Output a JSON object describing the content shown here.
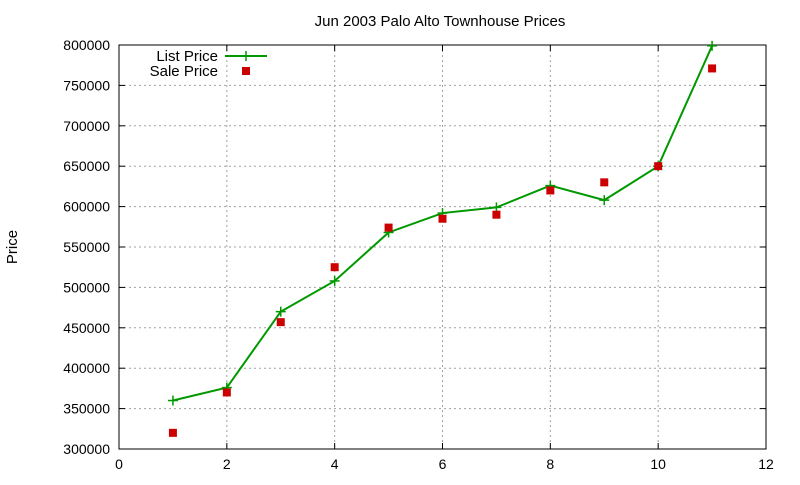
{
  "chart_data": {
    "type": "line",
    "title": "Jun 2003 Palo Alto Townhouse Prices",
    "xlabel": "",
    "ylabel": "Price",
    "xlim": [
      0,
      12
    ],
    "ylim": [
      300000,
      800000
    ],
    "x_ticks": [
      0,
      2,
      4,
      6,
      8,
      10,
      12
    ],
    "y_ticks": [
      300000,
      350000,
      400000,
      450000,
      500000,
      550000,
      600000,
      650000,
      700000,
      750000,
      800000
    ],
    "grid": true,
    "legend_position": "top-left",
    "series": [
      {
        "name": "List Price",
        "style": "line-with-plus-markers",
        "color": "#009900",
        "x": [
          1,
          2,
          3,
          4,
          5,
          6,
          7,
          8,
          9,
          10,
          11
        ],
        "y": [
          360000,
          376000,
          470000,
          508000,
          568000,
          592000,
          599000,
          626000,
          608000,
          650000,
          799000
        ]
      },
      {
        "name": "Sale Price",
        "style": "square-points",
        "color": "#cc0000",
        "x": [
          1,
          2,
          3,
          4,
          5,
          6,
          7,
          8,
          9,
          10,
          11
        ],
        "y": [
          320000,
          370000,
          457000,
          525000,
          574000,
          585000,
          590000,
          620000,
          630000,
          650000,
          771000
        ]
      }
    ]
  }
}
